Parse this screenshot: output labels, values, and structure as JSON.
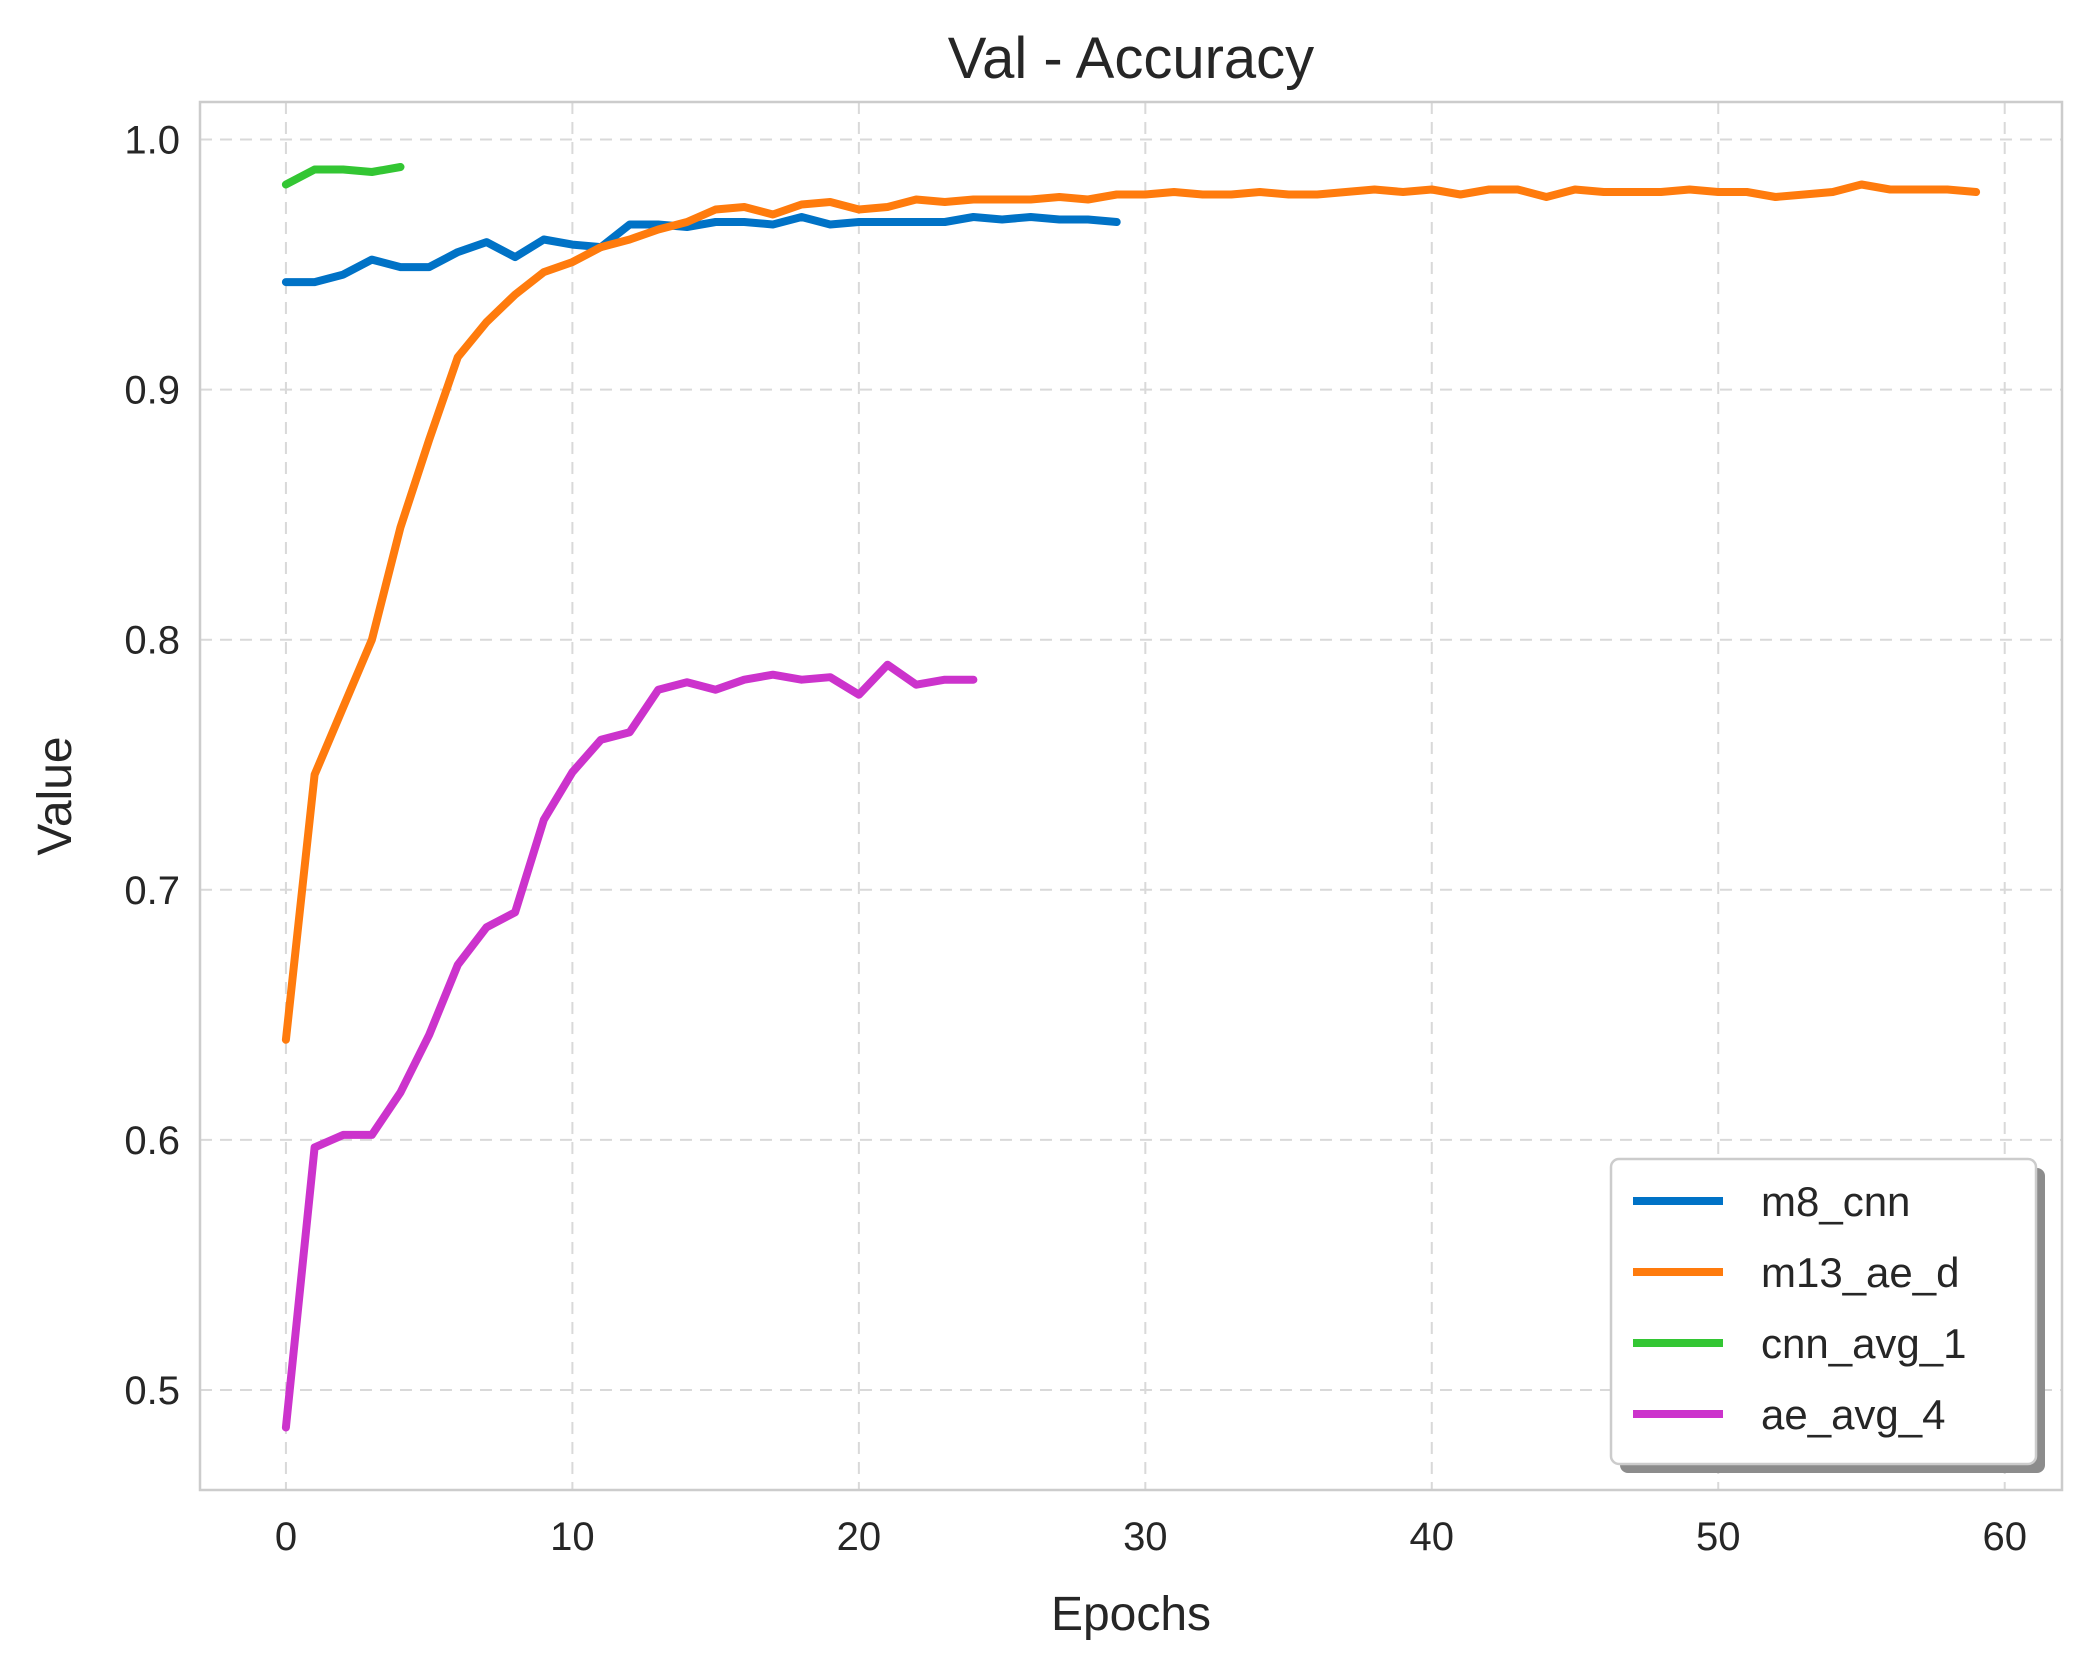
{
  "chart_data": {
    "type": "line",
    "title": "Val - Accuracy",
    "xlabel": "Epochs",
    "ylabel": "Value",
    "xlim": [
      -3,
      62
    ],
    "ylim": [
      0.46,
      1.015
    ],
    "xticks": [
      0,
      10,
      20,
      30,
      40,
      50,
      60
    ],
    "yticks": [
      0.5,
      0.6,
      0.7,
      0.8,
      0.9,
      1.0
    ],
    "ytick_labels": [
      "0.5",
      "0.6",
      "0.7",
      "0.8",
      "0.9",
      "1.0"
    ],
    "grid": true,
    "legend_position": "lower-right",
    "series": [
      {
        "name": "m8_cnn",
        "color": "#0072C6",
        "x": [
          0,
          1,
          2,
          3,
          4,
          5,
          6,
          7,
          8,
          9,
          10,
          11,
          12,
          13,
          14,
          15,
          16,
          17,
          18,
          19,
          20,
          21,
          22,
          23,
          24,
          25,
          26,
          27,
          28,
          29
        ],
        "values": [
          0.943,
          0.943,
          0.946,
          0.952,
          0.949,
          0.949,
          0.955,
          0.959,
          0.953,
          0.96,
          0.958,
          0.957,
          0.966,
          0.966,
          0.965,
          0.967,
          0.967,
          0.966,
          0.969,
          0.966,
          0.967,
          0.967,
          0.967,
          0.967,
          0.969,
          0.968,
          0.969,
          0.968,
          0.968,
          0.967
        ]
      },
      {
        "name": "m13_ae_d",
        "color": "#FF7B0D",
        "x": [
          0,
          1,
          2,
          3,
          4,
          5,
          6,
          7,
          8,
          9,
          10,
          11,
          12,
          13,
          14,
          15,
          16,
          17,
          18,
          19,
          20,
          21,
          22,
          23,
          24,
          25,
          26,
          27,
          28,
          29,
          30,
          31,
          32,
          33,
          34,
          35,
          36,
          37,
          38,
          39,
          40,
          41,
          42,
          43,
          44,
          45,
          46,
          47,
          48,
          49,
          50,
          51,
          52,
          53,
          54,
          55,
          56,
          57,
          58,
          59
        ],
        "values": [
          0.64,
          0.746,
          0.773,
          0.8,
          0.845,
          0.88,
          0.913,
          0.927,
          0.938,
          0.947,
          0.951,
          0.957,
          0.96,
          0.964,
          0.967,
          0.972,
          0.973,
          0.97,
          0.974,
          0.975,
          0.972,
          0.973,
          0.976,
          0.975,
          0.976,
          0.976,
          0.976,
          0.977,
          0.976,
          0.978,
          0.978,
          0.979,
          0.978,
          0.978,
          0.979,
          0.978,
          0.978,
          0.979,
          0.98,
          0.979,
          0.98,
          0.978,
          0.98,
          0.98,
          0.977,
          0.98,
          0.979,
          0.979,
          0.979,
          0.98,
          0.979,
          0.979,
          0.977,
          0.978,
          0.979,
          0.982,
          0.98,
          0.98,
          0.98,
          0.979
        ]
      },
      {
        "name": "cnn_avg_1",
        "color": "#33C633",
        "x": [
          0,
          1,
          2,
          3,
          4
        ],
        "values": [
          0.982,
          0.988,
          0.988,
          0.987,
          0.989
        ]
      },
      {
        "name": "ae_avg_4",
        "color": "#CC33CC",
        "x": [
          0,
          1,
          2,
          3,
          4,
          5,
          6,
          7,
          8,
          9,
          10,
          11,
          12,
          13,
          14,
          15,
          16,
          17,
          18,
          19,
          20,
          21,
          22,
          23,
          24
        ],
        "values": [
          0.485,
          0.597,
          0.602,
          0.602,
          0.619,
          0.642,
          0.67,
          0.685,
          0.691,
          0.728,
          0.747,
          0.76,
          0.763,
          0.78,
          0.783,
          0.78,
          0.784,
          0.786,
          0.784,
          0.785,
          0.778,
          0.79,
          0.782,
          0.784,
          0.784
        ]
      }
    ]
  }
}
